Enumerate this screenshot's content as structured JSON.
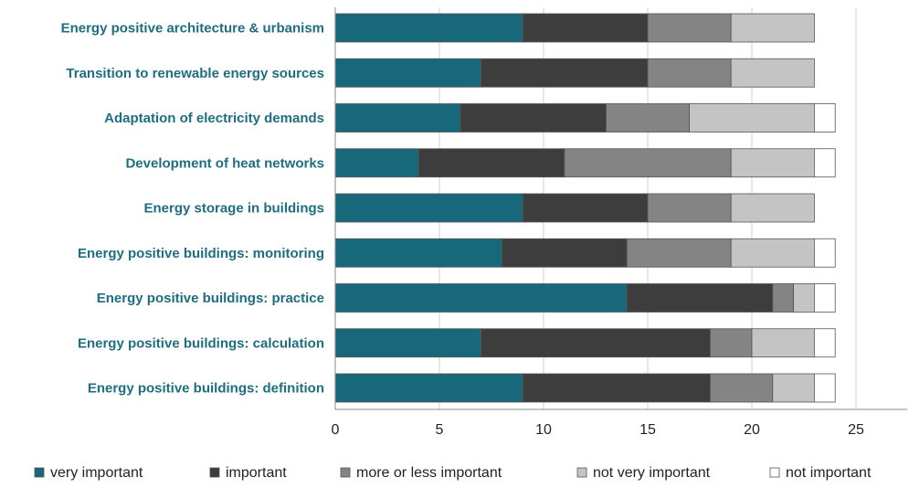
{
  "chart_data": {
    "type": "bar",
    "orientation": "horizontal",
    "stacked": true,
    "categories": [
      "Energy positive architecture & urbanism",
      "Transition to renewable energy sources",
      "Adaptation of electricity demands",
      "Development of heat networks",
      "Energy storage in buildings",
      "Energy positive buildings: monitoring",
      "Energy positive buildings: practice",
      "Energy positive buildings: calculation",
      "Energy positive buildings: definition"
    ],
    "series": [
      {
        "name": "very important",
        "color": "#16687a",
        "values": [
          9,
          7,
          6,
          4,
          9,
          8,
          14,
          7,
          9
        ]
      },
      {
        "name": "important",
        "color": "#3d3d3d",
        "values": [
          6,
          8,
          7,
          7,
          6,
          6,
          7,
          11,
          9
        ]
      },
      {
        "name": "more or less important",
        "color": "#848484",
        "values": [
          4,
          4,
          4,
          8,
          4,
          5,
          1,
          2,
          3
        ]
      },
      {
        "name": "not very important",
        "color": "#c4c4c4",
        "values": [
          4,
          4,
          6,
          4,
          4,
          4,
          1,
          3,
          2
        ]
      },
      {
        "name": "not important",
        "color": "#ffffff",
        "values": [
          0,
          0,
          1,
          1,
          0,
          1,
          1,
          1,
          1
        ]
      }
    ],
    "xlim": [
      0,
      25
    ],
    "xticks": [
      "0",
      "5",
      "10",
      "15",
      "20",
      "25"
    ],
    "legend_position": "bottom",
    "grid": "vertical major"
  }
}
